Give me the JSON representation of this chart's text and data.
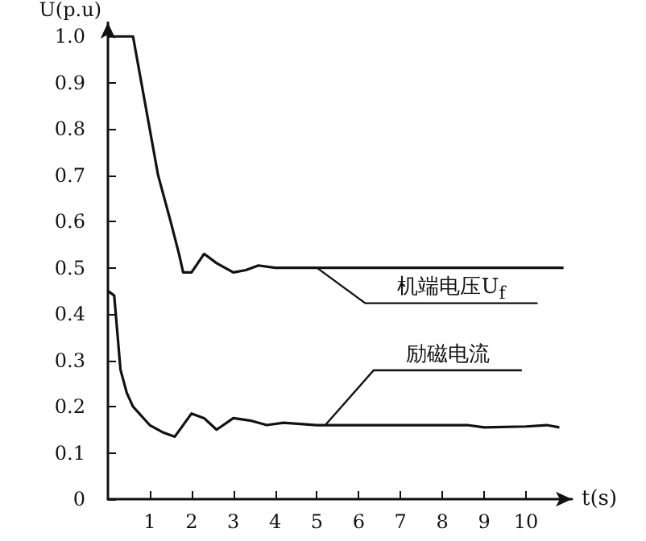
{
  "chart_data": {
    "type": "line",
    "xlabel": "t(s)",
    "ylabel": "U(p.u)",
    "xlim": [
      0,
      11.1
    ],
    "xticks": [
      1,
      2,
      3,
      4,
      5,
      6,
      7,
      8,
      9,
      10
    ],
    "ylim": [
      0,
      1.03
    ],
    "yticks": [
      0,
      0.1,
      0.2,
      0.3,
      0.4,
      0.5,
      0.6,
      0.7,
      0.8,
      0.9,
      {
        "value": 1,
        "label": "1.0"
      }
    ],
    "grid": false,
    "marker": "none",
    "line_style": "solid",
    "series": [
      {
        "color": "#111111",
        "x": [
          0,
          0.3,
          0.6,
          0.7,
          0.9,
          1.2,
          1.5,
          1.7,
          1.8,
          2.0,
          2.3,
          2.6,
          3.0,
          3.3,
          3.6,
          4.0,
          5.0,
          6.0,
          8.0,
          10.0,
          10.9
        ],
        "values": [
          1.0,
          1.0,
          1.0,
          0.95,
          0.85,
          0.7,
          0.6,
          0.53,
          0.49,
          0.49,
          0.53,
          0.51,
          0.49,
          0.495,
          0.505,
          0.5,
          0.5,
          0.5,
          0.5,
          0.5,
          0.5
        ]
      },
      {
        "color": "#111111",
        "x": [
          0,
          0.15,
          0.3,
          0.45,
          0.6,
          1.0,
          1.3,
          1.6,
          2.0,
          2.3,
          2.6,
          3.0,
          3.4,
          3.8,
          4.2,
          5.0,
          6.0,
          8.0,
          8.6,
          9.0,
          10.0,
          10.5,
          10.8
        ],
        "values": [
          0.45,
          0.44,
          0.28,
          0.23,
          0.2,
          0.16,
          0.145,
          0.135,
          0.185,
          0.175,
          0.15,
          0.175,
          0.17,
          0.16,
          0.165,
          0.16,
          0.16,
          0.16,
          0.16,
          0.155,
          0.157,
          0.16,
          0.155
        ]
      }
    ],
    "annotations": [
      {
        "text": "机端电压U$_{f}$",
        "x": 5,
        "y": 0.5
      },
      {
        "text": "励磁电流",
        "x": 5.2,
        "y": 0.16
      }
    ]
  }
}
